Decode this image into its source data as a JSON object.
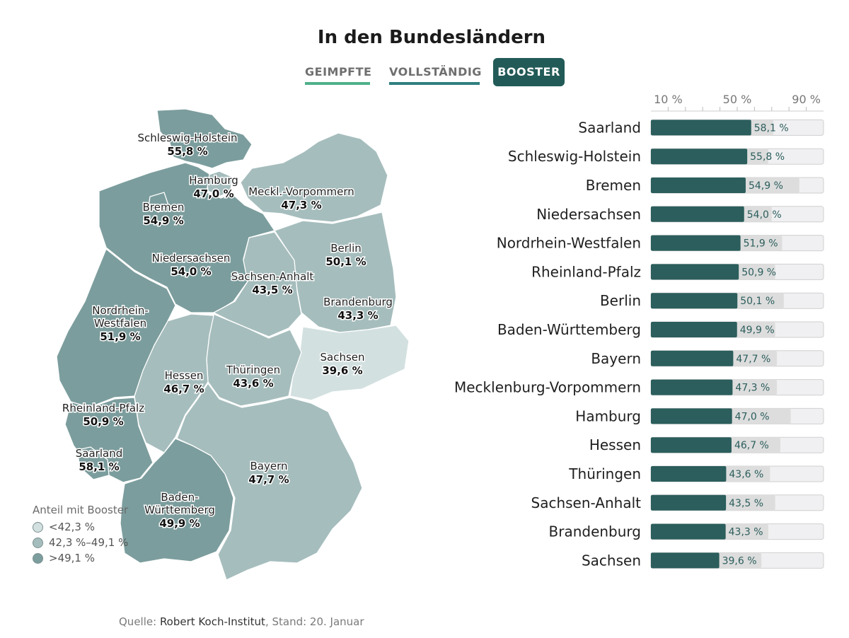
{
  "title": "In den Bundesländern",
  "tabs": [
    {
      "label": "GEIMPFTE",
      "color": "#4fb08a",
      "active": false
    },
    {
      "label": "VOLLSTÄNDIG",
      "color": "#2f7f80",
      "active": false
    },
    {
      "label": "BOOSTER",
      "color": "#225a57",
      "active": true
    }
  ],
  "legend": {
    "title": "Anteil mit Booster",
    "items": [
      {
        "label": "<42,3 %",
        "color": "#d3e0e0"
      },
      {
        "label": "42,3 %–49,1 %",
        "color": "#a6bdbd"
      },
      {
        "label": ">49,1 %",
        "color": "#7c9d9d"
      }
    ]
  },
  "map_labels": [
    {
      "name": "Schleswig-Holstein",
      "value": "55,8 %"
    },
    {
      "name": "Hamburg",
      "value": "47,0 %"
    },
    {
      "name": "Bremen",
      "value": "54,9 %"
    },
    {
      "name": "Meckl.-Vorpommern",
      "value": "47,3 %"
    },
    {
      "name": "Niedersachsen",
      "value": "54,0 %"
    },
    {
      "name": "Berlin",
      "value": "50,1 %"
    },
    {
      "name": "Sachsen-Anhalt",
      "value": "43,5 %"
    },
    {
      "name": "Brandenburg",
      "value": "43,3 %"
    },
    {
      "name": "Nordrhein-\nWestfalen",
      "value": "51,9 %"
    },
    {
      "name": "Sachsen",
      "value": "39,6 %"
    },
    {
      "name": "Hessen",
      "value": "46,7 %"
    },
    {
      "name": "Thüringen",
      "value": "43,6 %"
    },
    {
      "name": "Rheinland-Pfalz",
      "value": "50,9 %"
    },
    {
      "name": "Saarland",
      "value": "58,1 %"
    },
    {
      "name": "Bayern",
      "value": "47,7 %"
    },
    {
      "name": "Baden-\nWürttemberg",
      "value": "49,9 %"
    }
  ],
  "chart_data": {
    "type": "bar",
    "orientation": "horizontal",
    "x_ticks": [
      "10 %",
      "50 %",
      "90 %"
    ],
    "xlim": [
      0,
      100
    ],
    "bar_color": "#2b5e5c",
    "categories": [
      "Saarland",
      "Schleswig-Holstein",
      "Bremen",
      "Niedersachsen",
      "Nordrhein-Westfalen",
      "Rheinland-Pfalz",
      "Berlin",
      "Baden-Württemberg",
      "Bayern",
      "Mecklenburg-Vorpommern",
      "Hamburg",
      "Hessen",
      "Thüringen",
      "Sachsen-Anhalt",
      "Brandenburg",
      "Sachsen"
    ],
    "values": [
      58.1,
      55.8,
      54.9,
      54.0,
      51.9,
      50.9,
      50.1,
      49.9,
      47.7,
      47.3,
      47.0,
      46.7,
      43.6,
      43.5,
      43.3,
      39.6
    ],
    "value_labels": [
      "58,1 %",
      "55,8 %",
      "54,9 %",
      "54,0 %",
      "51,9 %",
      "50,9 %",
      "50,1 %",
      "49,9 %",
      "47,7 %",
      "47,3 %",
      "47,0 %",
      "46,7 %",
      "43,6 %",
      "43,5 %",
      "43,3 %",
      "39,6 %"
    ],
    "secondary_values": [
      71,
      68,
      86,
      70,
      76,
      72,
      77,
      72,
      73,
      73,
      81,
      75,
      69,
      72,
      68,
      64
    ]
  },
  "source": {
    "prefix": "Quelle: ",
    "name": "Robert Koch-Institut",
    "suffix": ", Stand: 20. Januar"
  }
}
